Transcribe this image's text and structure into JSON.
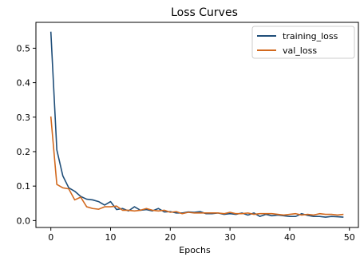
{
  "chart_data": {
    "type": "line",
    "title": "Loss Curves",
    "xlabel": "Epochs",
    "ylabel": "",
    "xlim": [
      -2.5,
      51.5
    ],
    "ylim": [
      -0.02,
      0.575
    ],
    "xticks": [
      0,
      10,
      20,
      30,
      40,
      50
    ],
    "xtick_labels": [
      "0",
      "10",
      "20",
      "30",
      "40",
      "50"
    ],
    "yticks": [
      0.0,
      0.1,
      0.2,
      0.3,
      0.4,
      0.5
    ],
    "ytick_labels": [
      "0.0",
      "0.1",
      "0.2",
      "0.3",
      "0.4",
      "0.5"
    ],
    "grid": false,
    "legend_position": "top-right",
    "x": [
      0,
      1,
      2,
      3,
      4,
      5,
      6,
      7,
      8,
      9,
      10,
      11,
      12,
      13,
      14,
      15,
      16,
      17,
      18,
      19,
      20,
      21,
      22,
      23,
      24,
      25,
      26,
      27,
      28,
      29,
      30,
      31,
      32,
      33,
      34,
      35,
      36,
      37,
      38,
      39,
      40,
      41,
      42,
      43,
      44,
      45,
      46,
      47,
      48,
      49
    ],
    "series": [
      {
        "name": "training_loss",
        "color": "#1f4e79",
        "values": [
          0.548,
          0.205,
          0.13,
          0.095,
          0.085,
          0.07,
          0.062,
          0.06,
          0.055,
          0.045,
          0.055,
          0.032,
          0.035,
          0.028,
          0.04,
          0.03,
          0.032,
          0.028,
          0.035,
          0.025,
          0.026,
          0.022,
          0.022,
          0.025,
          0.024,
          0.026,
          0.02,
          0.02,
          0.022,
          0.018,
          0.02,
          0.018,
          0.022,
          0.016,
          0.022,
          0.012,
          0.018,
          0.014,
          0.016,
          0.014,
          0.012,
          0.012,
          0.02,
          0.015,
          0.012,
          0.012,
          0.01,
          0.012,
          0.011,
          0.01
        ]
      },
      {
        "name": "val_loss",
        "color": "#d2691e",
        "values": [
          0.302,
          0.105,
          0.095,
          0.092,
          0.06,
          0.068,
          0.04,
          0.035,
          0.033,
          0.04,
          0.04,
          0.042,
          0.03,
          0.03,
          0.028,
          0.03,
          0.035,
          0.03,
          0.028,
          0.03,
          0.024,
          0.026,
          0.02,
          0.024,
          0.022,
          0.022,
          0.022,
          0.022,
          0.022,
          0.02,
          0.024,
          0.02,
          0.02,
          0.022,
          0.018,
          0.02,
          0.02,
          0.02,
          0.018,
          0.016,
          0.018,
          0.02,
          0.016,
          0.018,
          0.016,
          0.02,
          0.018,
          0.018,
          0.016,
          0.018
        ]
      }
    ]
  }
}
